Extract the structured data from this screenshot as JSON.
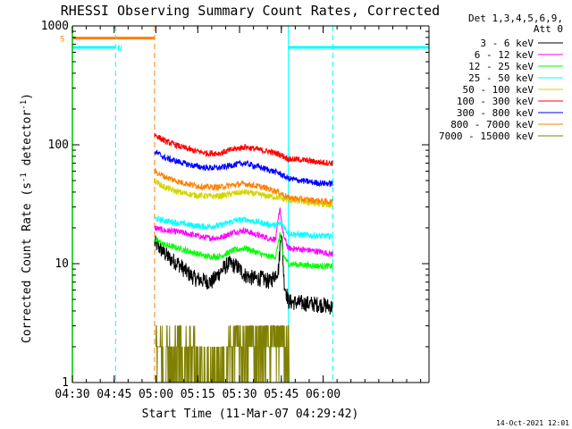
{
  "chart_data": {
    "type": "line",
    "title": "RHESSI Observing Summary Count Rates, Corrected",
    "xlabel": "Start Time (11-Mar-07 04:29:42)",
    "ylabel": "Corrected Count Rate (s",
    "ylabel_sup1": "-1",
    "ylabel_mid": " detector",
    "ylabel_sup2": "-1",
    "ylabel_end": ")",
    "yscale": "log",
    "ylim": [
      1,
      1000
    ],
    "xlim_min": [
      270,
      398
    ],
    "xticks": [
      {
        "min": 270,
        "label": "04:30"
      },
      {
        "min": 285,
        "label": "04:45"
      },
      {
        "min": 300,
        "label": "05:00"
      },
      {
        "min": 315,
        "label": "05:15"
      },
      {
        "min": 330,
        "label": "05:30"
      },
      {
        "min": 345,
        "label": "05:45"
      },
      {
        "min": 360,
        "label": "06:00"
      }
    ],
    "yticks": [
      {
        "v": 1,
        "label": "1"
      },
      {
        "v": 10,
        "label": "10"
      },
      {
        "v": 100,
        "label": "100"
      },
      {
        "v": 1000,
        "label": "1000"
      }
    ],
    "legend_header": [
      "Det 1,3,4,5,6,9,",
      "Att 0"
    ],
    "legend_position": "right",
    "series": [
      {
        "name": "3 - 6 keV",
        "color": "#000000",
        "x": [
          299.5,
          302,
          305,
          308,
          311,
          314,
          317,
          320,
          323,
          326,
          329,
          332,
          335,
          338,
          341,
          344,
          345,
          346,
          347.5,
          350,
          355,
          360,
          363.5
        ],
        "y": [
          15,
          13,
          11,
          10,
          8.5,
          7.5,
          7.2,
          7.0,
          8.5,
          10,
          9.5,
          8.0,
          7.5,
          7.5,
          7.0,
          9.0,
          20,
          7.0,
          4.8,
          4.7,
          4.6,
          4.5,
          4.3
        ]
      },
      {
        "name": "6 - 12 keV",
        "color": "#ff00ff",
        "x": [
          299.5,
          303,
          308,
          313,
          318,
          323,
          328,
          332,
          336,
          340,
          343,
          344.5,
          345.5,
          347.5,
          352,
          357,
          363.5
        ],
        "y": [
          20,
          19,
          18.5,
          17.5,
          16.5,
          16.5,
          18.5,
          19,
          17.5,
          16.5,
          16,
          30,
          18,
          13.5,
          13.2,
          12.8,
          12
        ]
      },
      {
        "name": "12 - 25 keV",
        "color": "#00ff00",
        "x": [
          299.5,
          303,
          308,
          313,
          318,
          323,
          328,
          332,
          336,
          340,
          343,
          344.5,
          345.5,
          347.5,
          352,
          357,
          363.5
        ],
        "y": [
          16,
          14.5,
          13.5,
          12.5,
          11.5,
          11.5,
          13,
          13.5,
          12.5,
          11.5,
          11.5,
          18,
          12,
          10,
          9.8,
          9.6,
          9.5
        ]
      },
      {
        "name": "25 - 50 keV",
        "color": "#00ffff",
        "x": [
          299.5,
          303,
          308,
          313,
          318,
          323,
          328,
          332,
          336,
          340,
          343,
          345,
          347.5,
          352,
          357,
          363.5
        ],
        "y": [
          24,
          23,
          22,
          21,
          20.5,
          21,
          23,
          23.5,
          22.5,
          21.5,
          21,
          22,
          18,
          17.5,
          17.2,
          17
        ]
      },
      {
        "name": "50 - 100 keV",
        "color": "#d4d400",
        "x": [
          299.5,
          303,
          308,
          313,
          318,
          323,
          328,
          332,
          336,
          340,
          344,
          347.5,
          352,
          357,
          363.5
        ],
        "y": [
          50,
          44,
          40,
          38,
          37,
          37,
          39,
          40,
          38.5,
          37,
          36,
          34,
          33.5,
          32,
          31
        ]
      },
      {
        "name": "100 - 300 keV",
        "color": "#ff0000",
        "x": [
          299.5,
          303,
          308,
          313,
          318,
          323,
          328,
          332,
          336,
          340,
          344,
          347.5,
          352,
          357,
          363.5
        ],
        "y": [
          122,
          108,
          98,
          90,
          85,
          85,
          92,
          96,
          92,
          88,
          84,
          76,
          75,
          72,
          70
        ]
      },
      {
        "name": "300 - 800 keV",
        "color": "#0000ff",
        "x": [
          299.5,
          303,
          308,
          313,
          318,
          323,
          328,
          332,
          336,
          340,
          344,
          347.5,
          352,
          357,
          363.5
        ],
        "y": [
          88,
          78,
          72,
          67,
          64,
          64,
          68,
          70,
          66,
          62,
          58,
          52,
          50,
          48,
          47
        ]
      },
      {
        "name": "800 - 7000 keV",
        "color": "#ff8000",
        "x": [
          299.5,
          303,
          308,
          313,
          318,
          323,
          328,
          332,
          336,
          340,
          344,
          347.5,
          352,
          357,
          363.5
        ],
        "y": [
          60,
          54,
          49,
          46,
          44,
          44,
          46,
          47,
          45,
          43,
          40,
          36,
          35,
          34,
          33
        ]
      },
      {
        "name": "7000 - 15000 keV",
        "color": "#808000",
        "x": [
          300,
          301,
          302,
          303,
          304,
          305,
          306,
          307,
          308,
          309,
          310,
          311,
          312,
          313,
          314,
          315,
          316,
          317,
          318,
          319,
          320,
          321,
          322,
          323,
          324,
          325,
          326,
          327,
          328,
          329,
          330,
          331,
          332,
          333,
          334,
          335,
          336,
          337,
          338,
          339,
          340,
          341,
          342,
          343,
          344,
          345,
          346,
          347,
          348
        ],
        "y": [
          3,
          2,
          2,
          1,
          2,
          2,
          1,
          2,
          2,
          2,
          1,
          2,
          2,
          2,
          2,
          1,
          1,
          1,
          1,
          1,
          1,
          1,
          1,
          1,
          1,
          1,
          2,
          2,
          2,
          3,
          2,
          2,
          2,
          2,
          3,
          2,
          2,
          2,
          2,
          2,
          3,
          2,
          3,
          2,
          2,
          3,
          2,
          2,
          2
        ]
      }
    ],
    "flag_bars": [
      {
        "label": "S",
        "color": "#ff8000",
        "start": 270,
        "end": 299.5,
        "level": 790
      },
      {
        "label": "N",
        "color": "#00ffff",
        "start": 270,
        "end": 285.5,
        "level": 660
      },
      {
        "label": "",
        "color": "#00ffff",
        "start": 347.5,
        "end": 398,
        "level": 660
      }
    ],
    "vlines": [
      {
        "min": 285.5,
        "color": "#00ffff",
        "dashed": true
      },
      {
        "min": 299.5,
        "color": "#ff8000",
        "dashed": true
      },
      {
        "min": 347.5,
        "color": "#00ffff",
        "dashed": false
      },
      {
        "min": 363.5,
        "color": "#00ffff",
        "dashed": true
      }
    ],
    "left_spine_color": "#00c000",
    "timestamp": "14-Oct-2021 12:01"
  }
}
